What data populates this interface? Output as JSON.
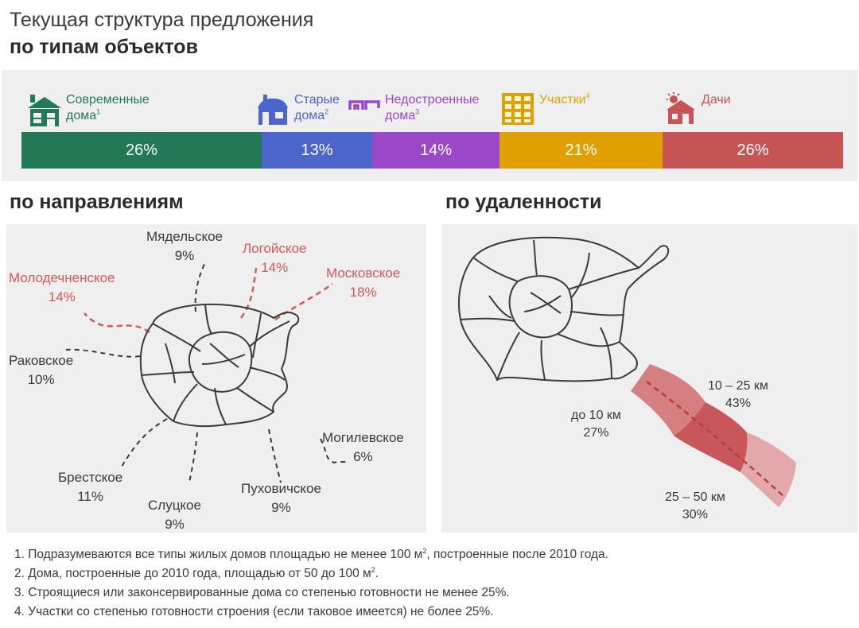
{
  "header": {
    "title_line1": "Текущая структура предложения",
    "title_line2": "по типам объектов"
  },
  "types": [
    {
      "name_line1": "Современные",
      "name_line2": "дома",
      "note": "1",
      "percent": "26%",
      "share": 26,
      "color": "#217a55"
    },
    {
      "name_line1": "Старые",
      "name_line2": "дома",
      "note": "2",
      "percent": "13%",
      "share": 13,
      "color": "#4b65cc"
    },
    {
      "name_line1": "Недостроенные",
      "name_line2": "дома",
      "note": "3",
      "percent": "14%",
      "share": 14,
      "color": "#9a48c8"
    },
    {
      "name_line1": "Участки",
      "name_line2": "",
      "note": "4",
      "percent": "21%",
      "share": 21,
      "color": "#e0a100"
    },
    {
      "name_line1": "Дачи",
      "name_line2": "",
      "note": "",
      "percent": "26%",
      "share": 26,
      "color": "#c85556"
    }
  ],
  "directions": {
    "title": "по направлениям",
    "items": [
      {
        "name": "Мядельское",
        "percent": "9%",
        "highlight": false
      },
      {
        "name": "Логойское",
        "percent": "14%",
        "highlight": true
      },
      {
        "name": "Московское",
        "percent": "18%",
        "highlight": true
      },
      {
        "name": "Молодечненское",
        "percent": "14%",
        "highlight": true
      },
      {
        "name": "Раковское",
        "percent": "10%",
        "highlight": false
      },
      {
        "name": "Могилевское",
        "percent": "6%",
        "highlight": false
      },
      {
        "name": "Брестское",
        "percent": "11%",
        "highlight": false
      },
      {
        "name": "Слуцкое",
        "percent": "9%",
        "highlight": false
      },
      {
        "name": "Пуховичское",
        "percent": "9%",
        "highlight": false
      }
    ]
  },
  "distance": {
    "title": "по удаленности",
    "items": [
      {
        "range": "до 10 км",
        "percent": "27%"
      },
      {
        "range": "10 – 25 км",
        "percent": "43%"
      },
      {
        "range": "25 – 50 км",
        "percent": "30%"
      }
    ]
  },
  "footnotes": [
    {
      "num": "1.",
      "text_a": "Подразумеваются все типы жилых домов площадью не менее 100 м",
      "sup": "2",
      "text_b": ", построенные после 2010 года."
    },
    {
      "num": "2.",
      "text_a": "Дома, построенные до 2010 года, площадью от 50 до 100 м",
      "sup": "2",
      "text_b": "."
    },
    {
      "num": "3.",
      "text_a": "Строящиеся или законсервированные дома со степенью готовности не менее 25%.",
      "sup": "",
      "text_b": ""
    },
    {
      "num": "4.",
      "text_a": "Участки со степенью готовности строения (если таковое имеется) не более 25%.",
      "sup": "",
      "text_b": ""
    }
  ],
  "icons": [
    "modern-house-icon",
    "old-house-icon",
    "unfinished-house-icon",
    "plot-grid-icon",
    "dacha-icon"
  ]
}
